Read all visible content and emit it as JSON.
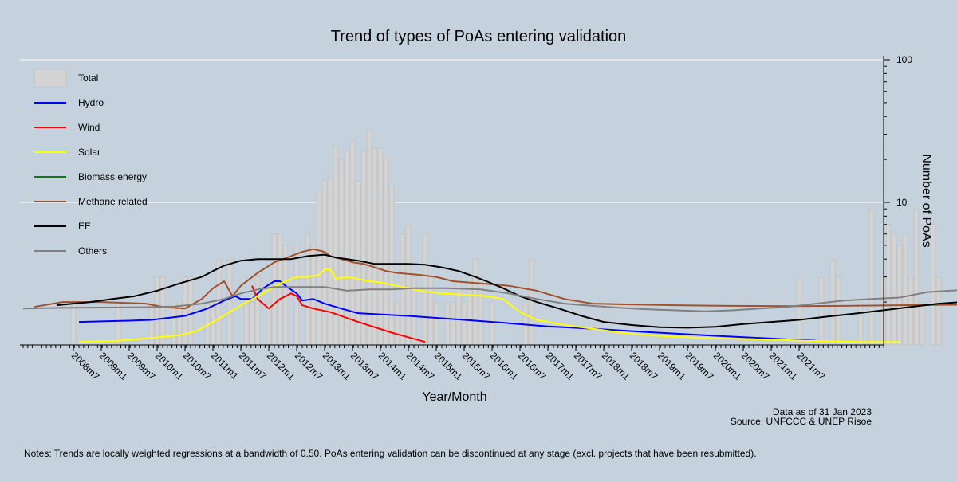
{
  "chart_data": {
    "type": "bar",
    "title": "Trend of types of PoAs entering validation",
    "xlabel": "Year/Month",
    "ylabel": "Number of PoAs",
    "y_scale": "log",
    "ylim": [
      1,
      100
    ],
    "y_ticks": [
      {
        "value": 10,
        "label": "10"
      },
      {
        "value": 100,
        "label": "100"
      }
    ],
    "grid": true,
    "legend_position": "top-left",
    "x_ticks": [
      "2008m7",
      "2009m1",
      "2009m7",
      "2010m1",
      "2010m7",
      "2011m1",
      "2011m7",
      "2012m1",
      "2012m7",
      "2013m1",
      "2013m7",
      "2014m1",
      "2014m7",
      "2015m1",
      "2015m7",
      "2016m1",
      "2016m7",
      "2017m1",
      "2017m7",
      "2018m1",
      "2018m7",
      "2019m1",
      "2019m7",
      "2020m1",
      "2020m7",
      "2021m1",
      "2021m7"
    ],
    "bars": {
      "name": "Total",
      "color": "#d3d3d3",
      "points": [
        [
          2008.5,
          2
        ],
        [
          2009.0,
          1
        ],
        [
          2009.3,
          2
        ],
        [
          2009.6,
          1
        ],
        [
          2009.9,
          2
        ],
        [
          2010.0,
          3
        ],
        [
          2010.1,
          3
        ],
        [
          2010.3,
          2
        ],
        [
          2010.4,
          2
        ],
        [
          2010.5,
          3
        ],
        [
          2010.6,
          3
        ],
        [
          2010.7,
          1
        ],
        [
          2010.9,
          2
        ],
        [
          2011.0,
          2
        ],
        [
          2011.1,
          4
        ],
        [
          2011.3,
          4
        ],
        [
          2011.6,
          2
        ],
        [
          2011.7,
          2
        ],
        [
          2011.8,
          3
        ],
        [
          2012.0,
          2
        ],
        [
          2012.1,
          6
        ],
        [
          2012.2,
          6
        ],
        [
          2012.3,
          5
        ],
        [
          2012.5,
          5
        ],
        [
          2012.7,
          6
        ],
        [
          2012.8,
          5
        ],
        [
          2012.9,
          12
        ],
        [
          2013.0,
          14
        ],
        [
          2013.1,
          15
        ],
        [
          2013.2,
          25
        ],
        [
          2013.3,
          20
        ],
        [
          2013.4,
          23
        ],
        [
          2013.5,
          27
        ],
        [
          2013.6,
          14
        ],
        [
          2013.7,
          23
        ],
        [
          2013.8,
          32
        ],
        [
          2013.9,
          24
        ],
        [
          2014.0,
          24
        ],
        [
          2014.1,
          21
        ],
        [
          2014.2,
          13
        ],
        [
          2014.3,
          2
        ],
        [
          2014.4,
          6
        ],
        [
          2014.5,
          7
        ],
        [
          2014.6,
          3
        ],
        [
          2014.8,
          6
        ],
        [
          2014.9,
          3
        ],
        [
          2015.0,
          2
        ],
        [
          2015.2,
          2
        ],
        [
          2015.3,
          2
        ],
        [
          2015.4,
          3
        ],
        [
          2015.5,
          2
        ],
        [
          2015.6,
          3
        ],
        [
          2015.7,
          4
        ],
        [
          2015.8,
          3
        ],
        [
          2016.0,
          2
        ],
        [
          2016.2,
          1
        ],
        [
          2016.3,
          1
        ],
        [
          2016.4,
          1
        ],
        [
          2016.6,
          2
        ],
        [
          2016.7,
          4
        ],
        [
          2017.1,
          1
        ],
        [
          2017.4,
          1
        ],
        [
          2017.6,
          1
        ],
        [
          2017.8,
          1
        ],
        [
          2018.3,
          1
        ],
        [
          2018.8,
          1
        ],
        [
          2019.1,
          1
        ],
        [
          2019.3,
          1
        ],
        [
          2019.6,
          1
        ],
        [
          2020.3,
          1
        ],
        [
          2020.5,
          1
        ],
        [
          2020.8,
          1
        ],
        [
          2021.1,
          1
        ],
        [
          2021.5,
          3
        ],
        [
          2021.6,
          1
        ],
        [
          2021.9,
          3
        ],
        [
          2022.0,
          1
        ],
        [
          2022.1,
          4
        ],
        [
          2022.2,
          3
        ],
        [
          2022.6,
          2
        ],
        [
          2022.8,
          9
        ],
        [
          2023.0,
          3
        ],
        [
          2023.1,
          7
        ],
        [
          2023.2,
          6
        ],
        [
          2023.3,
          5
        ],
        [
          2023.4,
          6
        ],
        [
          2023.5,
          3
        ],
        [
          2023.6,
          9
        ],
        [
          2023.7,
          2
        ],
        [
          2023.9,
          7
        ],
        [
          2024.0,
          3
        ],
        [
          2024.4,
          3
        ]
      ]
    },
    "series": [
      {
        "name": "Hydro",
        "color": "#0000ff",
        "points": [
          [
            2008.6,
            1.45
          ],
          [
            2009.5,
            1.48
          ],
          [
            2009.9,
            1.5
          ],
          [
            2010.5,
            1.6
          ],
          [
            2010.9,
            1.8
          ],
          [
            2011.2,
            2.05
          ],
          [
            2011.4,
            2.2
          ],
          [
            2011.5,
            2.1
          ],
          [
            2011.7,
            2.1
          ],
          [
            2011.9,
            2.5
          ],
          [
            2012.1,
            2.8
          ],
          [
            2012.2,
            2.8
          ],
          [
            2012.3,
            2.6
          ],
          [
            2012.5,
            2.3
          ],
          [
            2012.6,
            2.05
          ],
          [
            2012.8,
            2.1
          ],
          [
            2013.0,
            1.95
          ],
          [
            2013.3,
            1.8
          ],
          [
            2013.6,
            1.67
          ],
          [
            2014.5,
            1.6
          ],
          [
            2015.5,
            1.5
          ],
          [
            2016.3,
            1.42
          ],
          [
            2017.0,
            1.35
          ],
          [
            2017.8,
            1.3
          ],
          [
            2018.8,
            1.23
          ],
          [
            2019.8,
            1.17
          ],
          [
            2020.8,
            1.12
          ],
          [
            2021.8,
            1.07
          ]
        ]
      },
      {
        "name": "Wind",
        "color": "#ff0000",
        "points": [
          [
            2011.7,
            2.6
          ],
          [
            2011.8,
            2.1
          ],
          [
            2012.0,
            1.8
          ],
          [
            2012.2,
            2.1
          ],
          [
            2012.4,
            2.3
          ],
          [
            2012.5,
            2.2
          ],
          [
            2012.6,
            1.9
          ],
          [
            2012.8,
            1.8
          ],
          [
            2013.1,
            1.7
          ],
          [
            2013.6,
            1.45
          ],
          [
            2014.2,
            1.22
          ],
          [
            2014.8,
            1.05
          ]
        ]
      },
      {
        "name": "Solar",
        "color": "#ffff00",
        "points": [
          [
            2008.6,
            1.05
          ],
          [
            2009.3,
            1.07
          ],
          [
            2009.9,
            1.12
          ],
          [
            2010.4,
            1.17
          ],
          [
            2010.7,
            1.25
          ],
          [
            2011.0,
            1.45
          ],
          [
            2011.3,
            1.7
          ],
          [
            2011.6,
            2.0
          ],
          [
            2011.9,
            2.3
          ],
          [
            2012.2,
            2.7
          ],
          [
            2012.5,
            3.0
          ],
          [
            2012.7,
            3.0
          ],
          [
            2012.9,
            3.1
          ],
          [
            2013.0,
            3.4
          ],
          [
            2013.1,
            3.4
          ],
          [
            2013.2,
            2.9
          ],
          [
            2013.4,
            3.0
          ],
          [
            2013.6,
            2.9
          ],
          [
            2013.8,
            2.8
          ],
          [
            2014.0,
            2.75
          ],
          [
            2014.3,
            2.6
          ],
          [
            2014.7,
            2.4
          ],
          [
            2015.1,
            2.3
          ],
          [
            2015.5,
            2.25
          ],
          [
            2015.9,
            2.2
          ],
          [
            2016.2,
            2.1
          ],
          [
            2016.5,
            1.7
          ],
          [
            2016.8,
            1.5
          ],
          [
            2017.3,
            1.38
          ],
          [
            2017.8,
            1.3
          ],
          [
            2018.3,
            1.22
          ],
          [
            2018.8,
            1.17
          ],
          [
            2019.3,
            1.14
          ],
          [
            2019.8,
            1.12
          ],
          [
            2020.6,
            1.1
          ],
          [
            2021.3,
            1.08
          ],
          [
            2022.0,
            1.06
          ],
          [
            2022.6,
            1.05
          ],
          [
            2023.3,
            1.05
          ]
        ]
      },
      {
        "name": "Biomass energy",
        "color": "#008000",
        "points": []
      },
      {
        "name": "Methane related",
        "color": "#a0522d",
        "points": [
          [
            2007.8,
            1.85
          ],
          [
            2008.3,
            2.0
          ],
          [
            2009.0,
            2.0
          ],
          [
            2009.8,
            1.95
          ],
          [
            2010.1,
            1.85
          ],
          [
            2010.5,
            1.8
          ],
          [
            2010.8,
            2.1
          ],
          [
            2011.0,
            2.5
          ],
          [
            2011.2,
            2.8
          ],
          [
            2011.35,
            2.2
          ],
          [
            2011.5,
            2.6
          ],
          [
            2011.8,
            3.2
          ],
          [
            2012.1,
            3.8
          ],
          [
            2012.4,
            4.2
          ],
          [
            2012.6,
            4.5
          ],
          [
            2012.8,
            4.7
          ],
          [
            2013.0,
            4.5
          ],
          [
            2013.1,
            4.2
          ],
          [
            2013.3,
            4.0
          ],
          [
            2013.5,
            3.8
          ],
          [
            2013.7,
            3.7
          ],
          [
            2013.9,
            3.5
          ],
          [
            2014.1,
            3.3
          ],
          [
            2014.3,
            3.2
          ],
          [
            2014.7,
            3.1
          ],
          [
            2015.0,
            3.0
          ],
          [
            2015.3,
            2.8
          ],
          [
            2015.8,
            2.7
          ],
          [
            2016.3,
            2.6
          ],
          [
            2016.8,
            2.4
          ],
          [
            2017.3,
            2.1
          ],
          [
            2017.8,
            1.95
          ],
          [
            2018.3,
            1.93
          ],
          [
            2019.3,
            1.9
          ],
          [
            2020.3,
            1.88
          ],
          [
            2021.3,
            1.87
          ],
          [
            2022.3,
            1.88
          ],
          [
            2023.3,
            1.9
          ],
          [
            2024.8,
            1.92
          ],
          [
            2025.8,
            1.95
          ]
        ]
      },
      {
        "name": "EE",
        "color": "#000000",
        "points": [
          [
            2008.2,
            1.9
          ],
          [
            2008.8,
            2.0
          ],
          [
            2009.2,
            2.1
          ],
          [
            2009.6,
            2.2
          ],
          [
            2010.0,
            2.4
          ],
          [
            2010.4,
            2.7
          ],
          [
            2010.8,
            3.0
          ],
          [
            2011.0,
            3.3
          ],
          [
            2011.2,
            3.6
          ],
          [
            2011.5,
            3.9
          ],
          [
            2011.8,
            4.0
          ],
          [
            2012.1,
            4.0
          ],
          [
            2012.4,
            4.0
          ],
          [
            2012.7,
            4.2
          ],
          [
            2013.0,
            4.3
          ],
          [
            2013.2,
            4.1
          ],
          [
            2013.4,
            4.0
          ],
          [
            2013.6,
            3.9
          ],
          [
            2013.9,
            3.7
          ],
          [
            2014.2,
            3.7
          ],
          [
            2014.5,
            3.7
          ],
          [
            2014.8,
            3.65
          ],
          [
            2015.1,
            3.5
          ],
          [
            2015.4,
            3.3
          ],
          [
            2015.7,
            3.0
          ],
          [
            2015.9,
            2.8
          ],
          [
            2016.2,
            2.5
          ],
          [
            2016.5,
            2.2
          ],
          [
            2016.8,
            2.0
          ],
          [
            2017.2,
            1.8
          ],
          [
            2017.6,
            1.6
          ],
          [
            2018.0,
            1.45
          ],
          [
            2018.5,
            1.38
          ],
          [
            2019.0,
            1.33
          ],
          [
            2019.5,
            1.32
          ],
          [
            2020.0,
            1.34
          ],
          [
            2020.5,
            1.4
          ],
          [
            2021.0,
            1.45
          ],
          [
            2021.5,
            1.5
          ],
          [
            2022.0,
            1.58
          ],
          [
            2022.5,
            1.66
          ],
          [
            2023.0,
            1.75
          ],
          [
            2023.5,
            1.85
          ],
          [
            2024.0,
            1.95
          ],
          [
            2024.4,
            2.0
          ]
        ]
      },
      {
        "name": "Others",
        "color": "#808080",
        "points": [
          [
            2007.6,
            1.8
          ],
          [
            2008.3,
            1.82
          ],
          [
            2009.0,
            1.83
          ],
          [
            2009.8,
            1.84
          ],
          [
            2010.3,
            1.86
          ],
          [
            2010.8,
            1.95
          ],
          [
            2011.2,
            2.1
          ],
          [
            2011.5,
            2.3
          ],
          [
            2011.8,
            2.45
          ],
          [
            2012.1,
            2.55
          ],
          [
            2012.6,
            2.55
          ],
          [
            2013.0,
            2.55
          ],
          [
            2013.4,
            2.4
          ],
          [
            2013.8,
            2.45
          ],
          [
            2014.2,
            2.45
          ],
          [
            2014.6,
            2.5
          ],
          [
            2015.2,
            2.5
          ],
          [
            2015.8,
            2.45
          ],
          [
            2016.3,
            2.3
          ],
          [
            2016.8,
            2.1
          ],
          [
            2017.3,
            1.95
          ],
          [
            2017.8,
            1.88
          ],
          [
            2018.3,
            1.82
          ],
          [
            2018.8,
            1.78
          ],
          [
            2019.3,
            1.75
          ],
          [
            2019.8,
            1.72
          ],
          [
            2020.3,
            1.75
          ],
          [
            2020.8,
            1.8
          ],
          [
            2021.3,
            1.85
          ],
          [
            2021.8,
            1.95
          ],
          [
            2022.3,
            2.05
          ],
          [
            2022.8,
            2.1
          ],
          [
            2023.3,
            2.15
          ],
          [
            2023.8,
            2.35
          ],
          [
            2024.2,
            2.4
          ],
          [
            2024.6,
            2.45
          ],
          [
            2025.0,
            2.5
          ],
          [
            2025.3,
            2.35
          ],
          [
            2025.6,
            2.25
          ],
          [
            2025.9,
            2.1
          ],
          [
            2026.2,
            1.95
          ],
          [
            2026.4,
            1.8
          ]
        ]
      }
    ]
  },
  "notes": {
    "data_date": "Data as of 31 Jan 2023",
    "source": "Source: UNFCCC & UNEP Risoe",
    "footnote": "Notes: Trends are locally weighted regressions at a bandwidth of 0.50. PoAs entering validation can be discontinued at any stage (excl. projects that have been resubmitted)."
  }
}
